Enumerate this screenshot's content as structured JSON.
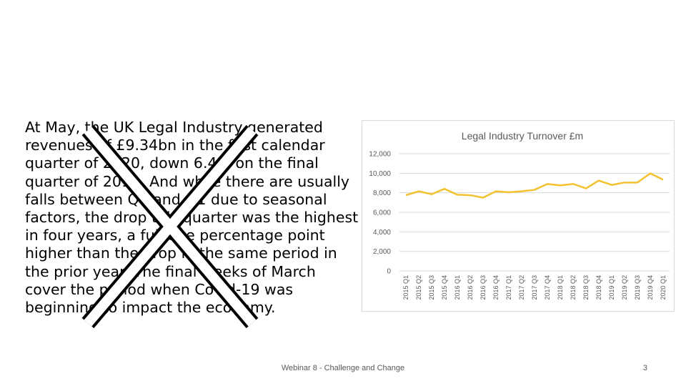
{
  "slide": {
    "body": "At May, the UK Legal Industry generated revenues of £9.34bn in the first calendar quarter of 2020, down 6.4% on the final quarter of 2019. And while there are usually falls between Q4 and Q1 due to seasonal factors, the drop this quarter was the highest in four years, a full one percentage point higher than the drop in the same period in the prior year. The final weeks of March cover the period when Covid-19 was beginning to impact the economy.",
    "footer": "Webinar 8 - Challenge and Change",
    "page_number": "3"
  },
  "chart_data": {
    "type": "line",
    "title": "Legal Industry Turnover £m",
    "categories": [
      "2015 Q1",
      "2015 Q2",
      "2015 Q3",
      "2015 Q4",
      "2016 Q1",
      "2016 Q2",
      "2016 Q3",
      "2016 Q4",
      "2017 Q1",
      "2017 Q2",
      "2017 Q3",
      "2017 Q4",
      "2018 Q1",
      "2018 Q2",
      "2018 Q3",
      "2018 Q4",
      "2019 Q1",
      "2019 Q2",
      "2019 Q3",
      "2019 Q4",
      "2020 Q1"
    ],
    "series": [
      {
        "values": [
          7750,
          8150,
          7850,
          8400,
          7800,
          7750,
          7500,
          8150,
          8050,
          8150,
          8300,
          8900,
          8750,
          8900,
          8450,
          9250,
          8800,
          9050,
          9050,
          9980,
          9340
        ]
      }
    ],
    "yticks": [
      "0",
      "2,000",
      "4,000",
      "6,000",
      "8,000",
      "10,000",
      "12,000"
    ],
    "ylim": [
      0,
      12000
    ],
    "grid": true,
    "legend": "none",
    "line_color": "#f2c230"
  }
}
